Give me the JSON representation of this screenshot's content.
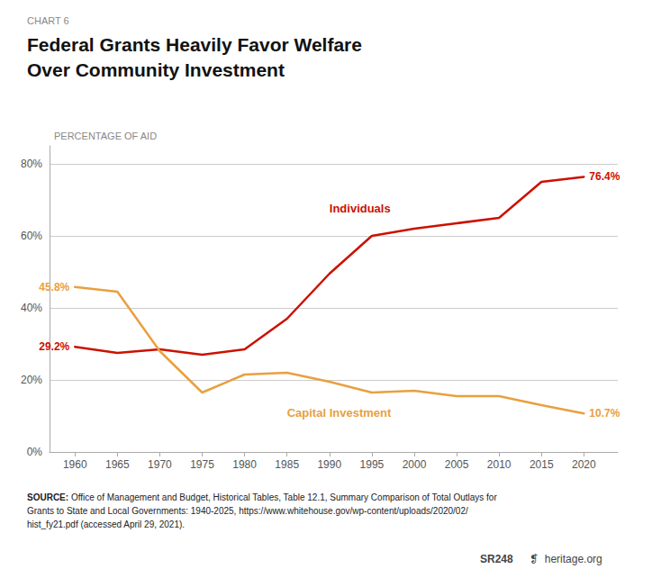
{
  "chart_data": {
    "type": "line",
    "chart_label": "CHART 6",
    "title": "Federal Grants Heavily Favor Welfare\nOver Community Investment",
    "ylabel": "PERCENTAGE OF AID",
    "x": [
      1960,
      1965,
      1970,
      1975,
      1980,
      1985,
      1990,
      1995,
      2000,
      2005,
      2010,
      2015,
      2020
    ],
    "series": [
      {
        "name": "Individuals",
        "color": "#cc1100",
        "values": [
          29.2,
          27.5,
          28.5,
          27.0,
          28.5,
          37.0,
          49.5,
          60.0,
          62.0,
          63.5,
          65.0,
          75.0,
          76.4
        ]
      },
      {
        "name": "Capital Investment",
        "color": "#e8a040",
        "values": [
          45.8,
          44.5,
          28.0,
          16.5,
          21.5,
          22.0,
          19.5,
          16.5,
          17.0,
          15.5,
          15.5,
          13.0,
          10.7
        ]
      }
    ],
    "annotations": [
      {
        "text": "29.2%",
        "x": 1960,
        "y": 29.2,
        "series": "Individuals"
      },
      {
        "text": "76.4%",
        "x": 2020,
        "y": 76.4,
        "series": "Individuals"
      },
      {
        "text": "45.8%",
        "x": 1960,
        "y": 45.8,
        "series": "Capital Investment"
      },
      {
        "text": "10.7%",
        "x": 2020,
        "y": 10.7,
        "series": "Capital Investment"
      },
      {
        "text": "Individuals",
        "x": 1990,
        "y": 66,
        "series": "Individuals"
      },
      {
        "text": "Capital Investment",
        "x": 1985,
        "y": 12.5,
        "series": "Capital Investment"
      }
    ],
    "xlim": [
      1957,
      2024
    ],
    "xticks": [
      1960,
      1965,
      1970,
      1975,
      1980,
      1985,
      1990,
      1995,
      2000,
      2005,
      2010,
      2015,
      2020
    ],
    "ylim": [
      0,
      85
    ],
    "yticks": [
      {
        "value": 0,
        "label": "0%"
      },
      {
        "value": 20,
        "label": "20%"
      },
      {
        "value": 40,
        "label": "40%"
      },
      {
        "value": 60,
        "label": "60%"
      },
      {
        "value": 80,
        "label": "80%"
      }
    ],
    "grid": true,
    "source": "SOURCE: Office of Management and Budget, Historical Tables, Table 12.1, Summary Comparison of Total Outlays for\nGrants to State and Local Governments: 1940-2025, https://www.whitehouse.gov/wp-content/uploads/2020/02/\nhist_fy21.pdf (accessed April 29, 2021).",
    "footer": [
      "SR248",
      "❡  heritage.org"
    ]
  }
}
